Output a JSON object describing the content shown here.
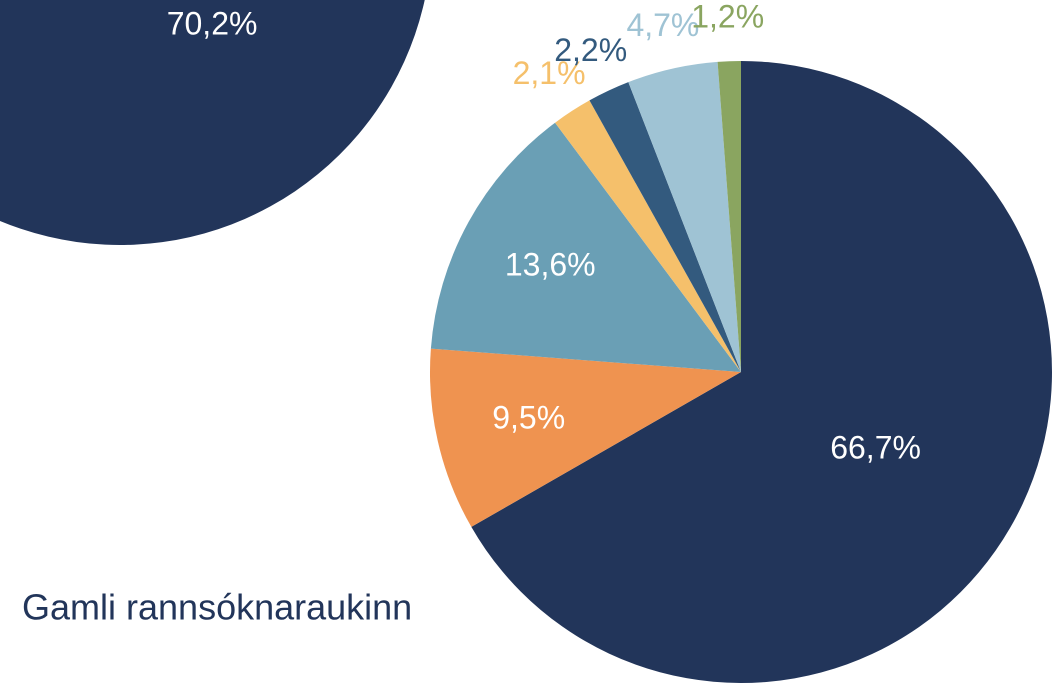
{
  "chart_data": [
    {
      "type": "pie",
      "values": [
        70.2
      ],
      "value_labels": [
        "70,2%"
      ],
      "colors": [
        "#22355a"
      ]
    },
    {
      "type": "pie",
      "values": [
        66.7,
        9.5,
        13.6,
        2.1,
        2.2,
        4.7,
        1.2
      ],
      "value_labels": [
        "66,7%",
        "9,5%",
        "13,6%",
        "2,1%",
        "2,2%",
        "4,7%",
        "1,2%"
      ],
      "colors": [
        "#22355a",
        "#ef9350",
        "#6a9fb5",
        "#f5c06b",
        "#335a7e",
        "#9fc3d4",
        "#8aa560"
      ]
    }
  ],
  "caption": "Gamli rannsóknaraukinn"
}
